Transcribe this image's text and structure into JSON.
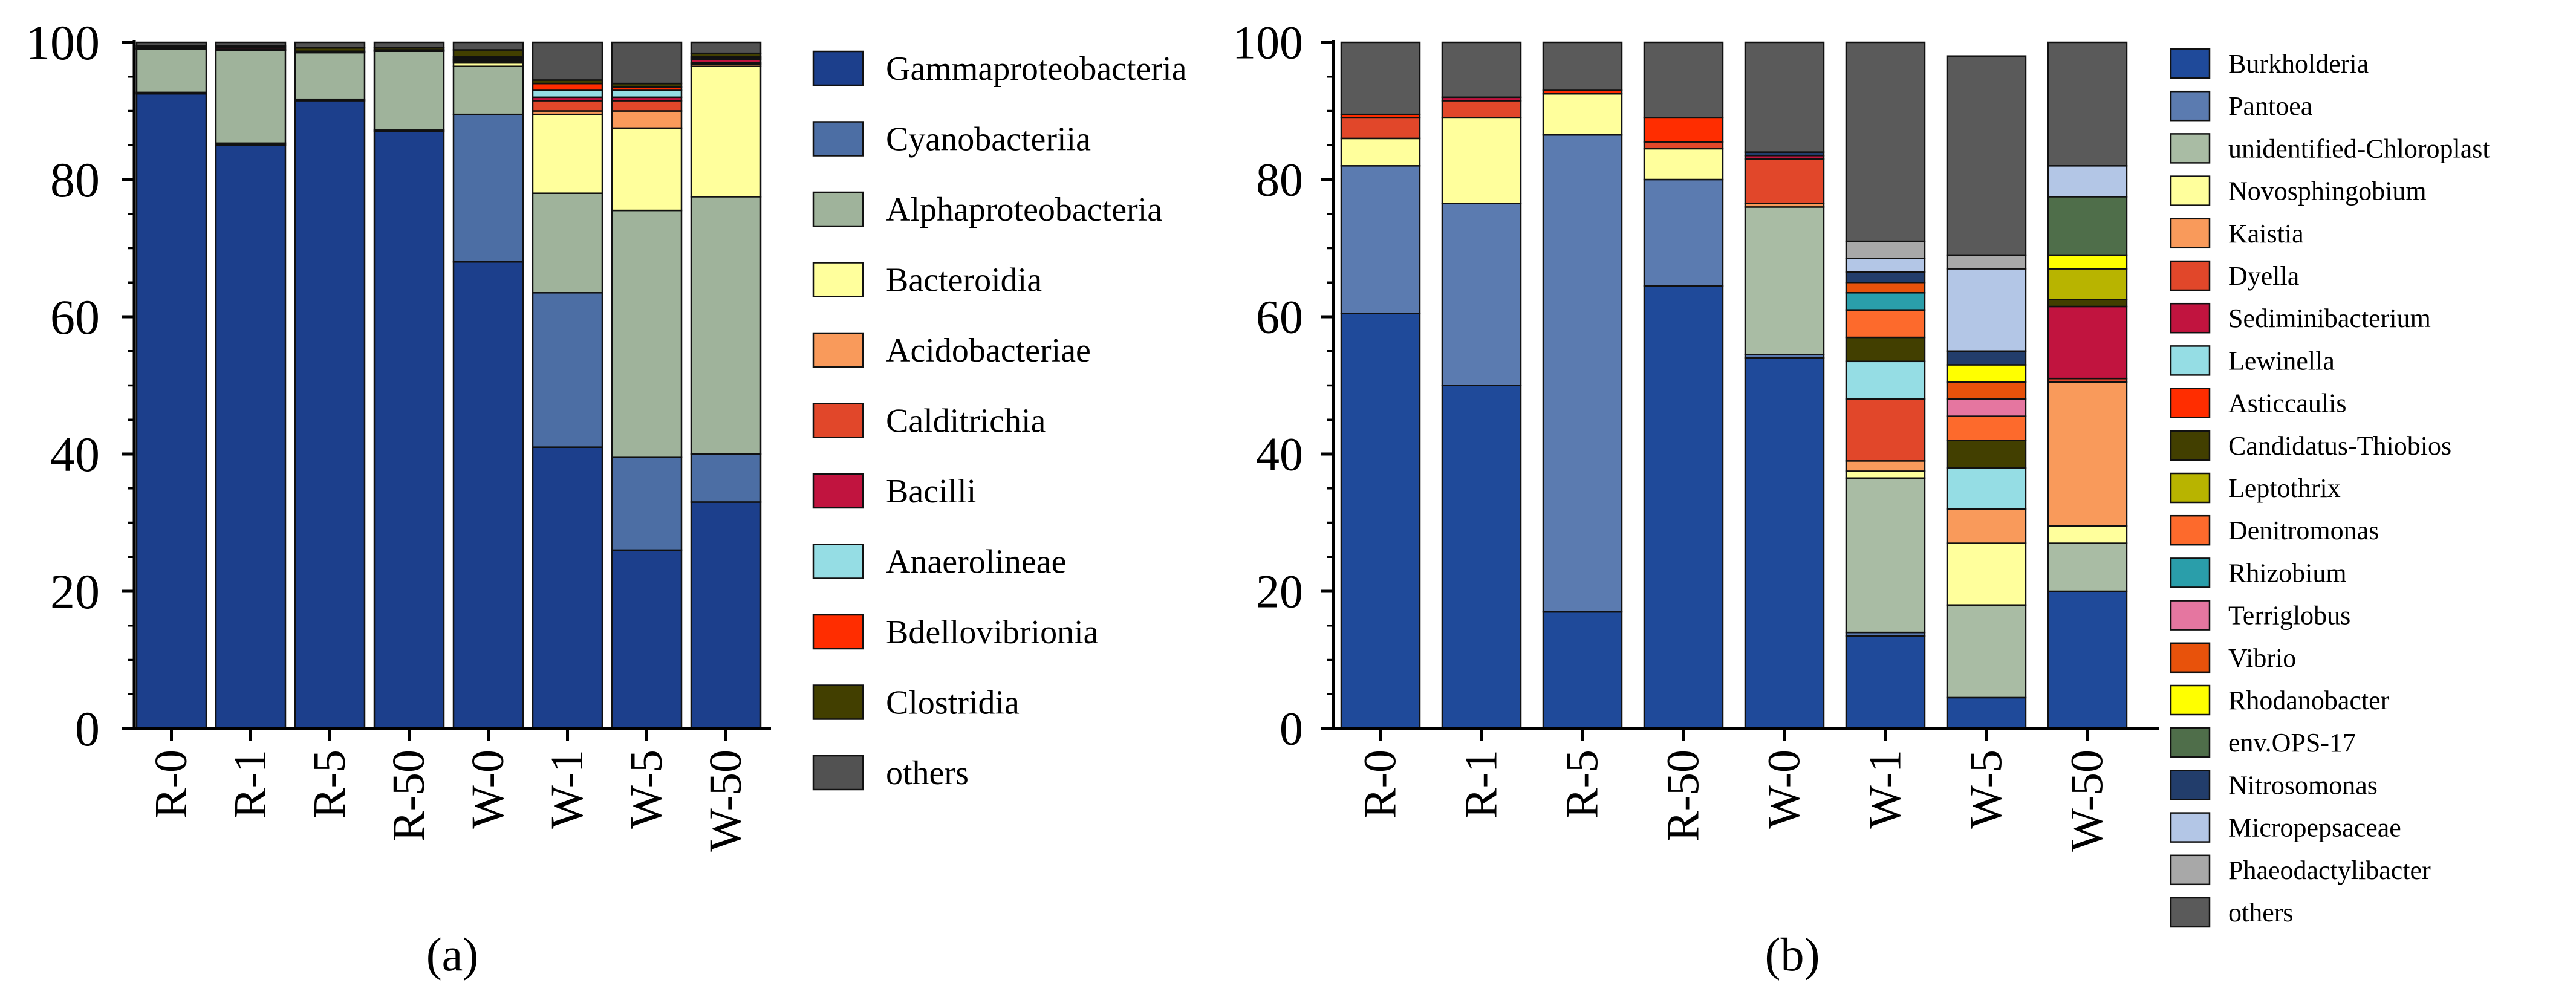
{
  "chart_data": [
    {
      "panel_label": "(a)",
      "type": "bar",
      "stacked": true,
      "ylim": [
        0,
        100
      ],
      "yticks": [
        0,
        20,
        40,
        60,
        80,
        100
      ],
      "categories": [
        "R-0",
        "R-1",
        "R-5",
        "R-50",
        "W-0",
        "W-1",
        "W-5",
        "W-50"
      ],
      "series": [
        {
          "name": "Gammaproteobacteria",
          "color": "#1c3f8c",
          "values": [
            92.5,
            85.0,
            91.5,
            87.0,
            68.0,
            41.0,
            26.0,
            33.0
          ]
        },
        {
          "name": "Cyanobacteriia",
          "color": "#4c6ea4",
          "values": [
            0.2,
            0.3,
            0.2,
            0.2,
            21.5,
            22.5,
            13.5,
            7.0
          ]
        },
        {
          "name": "Alphaproteobacteria",
          "color": "#9fb39b",
          "values": [
            6.3,
            13.5,
            6.8,
            11.5,
            7.0,
            14.5,
            36.0,
            37.5
          ]
        },
        {
          "name": "Bacteroidia",
          "color": "#ffff9c",
          "values": [
            0.1,
            0.1,
            0.1,
            0.1,
            0.5,
            11.5,
            12.0,
            19.0
          ]
        },
        {
          "name": "Acidobacteriae",
          "color": "#f99a5b",
          "values": [
            0.0,
            0.0,
            0.0,
            0.0,
            0.2,
            0.5,
            2.5,
            0.3
          ]
        },
        {
          "name": "Calditrichia",
          "color": "#e1472a",
          "values": [
            0.0,
            0.1,
            0.0,
            0.0,
            0.2,
            1.5,
            1.5,
            0.2
          ]
        },
        {
          "name": "Bacilli",
          "color": "#c1143f",
          "values": [
            0.1,
            0.3,
            0.1,
            0.1,
            0.1,
            0.5,
            0.5,
            0.5
          ]
        },
        {
          "name": "Anaerolineae",
          "color": "#95dde4",
          "values": [
            0.0,
            0.0,
            0.0,
            0.0,
            0.2,
            1.0,
            1.0,
            0.2
          ]
        },
        {
          "name": "Bdellovibrionia",
          "color": "#ff2d00",
          "values": [
            0.0,
            0.2,
            0.0,
            0.0,
            0.2,
            1.0,
            0.5,
            0.2
          ]
        },
        {
          "name": "Clostridia",
          "color": "#423f00",
          "values": [
            0.3,
            0.0,
            0.5,
            0.3,
            1.0,
            0.5,
            0.5,
            0.5
          ]
        },
        {
          "name": "others",
          "color": "#525252",
          "values": [
            0.5,
            0.5,
            0.8,
            0.8,
            1.1,
            5.5,
            6.0,
            1.6
          ]
        }
      ]
    },
    {
      "panel_label": "(b)",
      "type": "bar",
      "stacked": true,
      "ylim": [
        0,
        100
      ],
      "yticks": [
        0,
        20,
        40,
        60,
        80,
        100
      ],
      "categories": [
        "R-0",
        "R-1",
        "R-5",
        "R-50",
        "W-0",
        "W-1",
        "W-5",
        "W-50"
      ],
      "series": [
        {
          "name": "Burkholderia",
          "color": "#1f4a9a",
          "values": [
            60.5,
            50.0,
            17.0,
            64.5,
            54.0,
            13.5,
            4.5,
            20.0
          ]
        },
        {
          "name": "Pantoea",
          "color": "#5b7bb0",
          "values": [
            21.5,
            26.5,
            69.5,
            15.5,
            0.5,
            0.5,
            0.0,
            0.0
          ]
        },
        {
          "name": "unidentified-Chloroplast",
          "color": "#a9bca4",
          "values": [
            0.0,
            0.0,
            0.0,
            0.0,
            21.5,
            22.5,
            13.5,
            7.0
          ]
        },
        {
          "name": "Novosphingobium",
          "color": "#ffff9c",
          "values": [
            4.0,
            12.5,
            6.0,
            4.5,
            0.0,
            1.0,
            9.0,
            2.5
          ]
        },
        {
          "name": "Kaistia",
          "color": "#f99a5b",
          "values": [
            0.0,
            0.0,
            0.0,
            0.0,
            0.5,
            1.5,
            5.0,
            21.0
          ]
        },
        {
          "name": "Dyella",
          "color": "#e1472a",
          "values": [
            3.0,
            2.5,
            0.0,
            1.0,
            6.5,
            9.0,
            0.0,
            0.5
          ]
        },
        {
          "name": "Sediminibacterium",
          "color": "#c1143f",
          "values": [
            0.0,
            0.5,
            0.0,
            0.0,
            0.5,
            0.0,
            0.0,
            10.5
          ]
        },
        {
          "name": "Lewinella",
          "color": "#95dde4",
          "values": [
            0.0,
            0.0,
            0.0,
            0.0,
            0.0,
            5.5,
            6.0,
            0.0
          ]
        },
        {
          "name": "Asticcaulis",
          "color": "#ff2d00",
          "values": [
            0.5,
            0.0,
            0.5,
            3.5,
            0.0,
            0.0,
            0.0,
            0.0
          ]
        },
        {
          "name": "Candidatus-Thiobios",
          "color": "#423f00",
          "values": [
            0.0,
            0.0,
            0.0,
            0.0,
            0.0,
            3.5,
            4.0,
            1.0
          ]
        },
        {
          "name": "Leptothrix",
          "color": "#b8b400",
          "values": [
            0.0,
            0.0,
            0.0,
            0.0,
            0.0,
            0.0,
            0.0,
            4.5
          ]
        },
        {
          "name": "Denitromonas",
          "color": "#fd6a2c",
          "values": [
            0.0,
            0.0,
            0.0,
            0.0,
            0.0,
            4.0,
            3.5,
            0.0
          ]
        },
        {
          "name": "Rhizobium",
          "color": "#2a9eaa",
          "values": [
            0.0,
            0.0,
            0.0,
            0.0,
            0.0,
            2.5,
            0.0,
            0.0
          ]
        },
        {
          "name": "Terriglobus",
          "color": "#e576a0",
          "values": [
            0.0,
            0.0,
            0.0,
            0.0,
            0.0,
            0.0,
            2.5,
            0.0
          ]
        },
        {
          "name": "Vibrio",
          "color": "#e8520b",
          "values": [
            0.0,
            0.0,
            0.0,
            0.0,
            0.0,
            1.5,
            2.5,
            0.0
          ]
        },
        {
          "name": "Rhodanobacter",
          "color": "#ffff00",
          "values": [
            0.0,
            0.0,
            0.0,
            0.0,
            0.0,
            0.0,
            2.5,
            2.0
          ]
        },
        {
          "name": "env.OPS-17",
          "color": "#4f6e4a",
          "values": [
            0.0,
            0.0,
            0.0,
            0.0,
            0.0,
            0.0,
            0.0,
            8.5
          ]
        },
        {
          "name": "Nitrosomonas",
          "color": "#223d6b",
          "values": [
            0.0,
            0.0,
            0.0,
            0.0,
            0.5,
            1.5,
            2.0,
            0.0
          ]
        },
        {
          "name": "Micropepsaceae",
          "color": "#b3c6e6",
          "values": [
            0.0,
            0.0,
            0.0,
            0.0,
            0.0,
            2.0,
            12.0,
            4.5
          ]
        },
        {
          "name": "Phaeodactylibacter",
          "color": "#a8a8a8",
          "values": [
            0.0,
            0.0,
            0.0,
            0.0,
            0.0,
            2.5,
            2.0,
            0.0
          ]
        },
        {
          "name": "others",
          "color": "#5a5a5a",
          "values": [
            10.5,
            8.0,
            7.0,
            11.0,
            16.0,
            29.0,
            29.0,
            18.0
          ]
        }
      ]
    }
  ]
}
